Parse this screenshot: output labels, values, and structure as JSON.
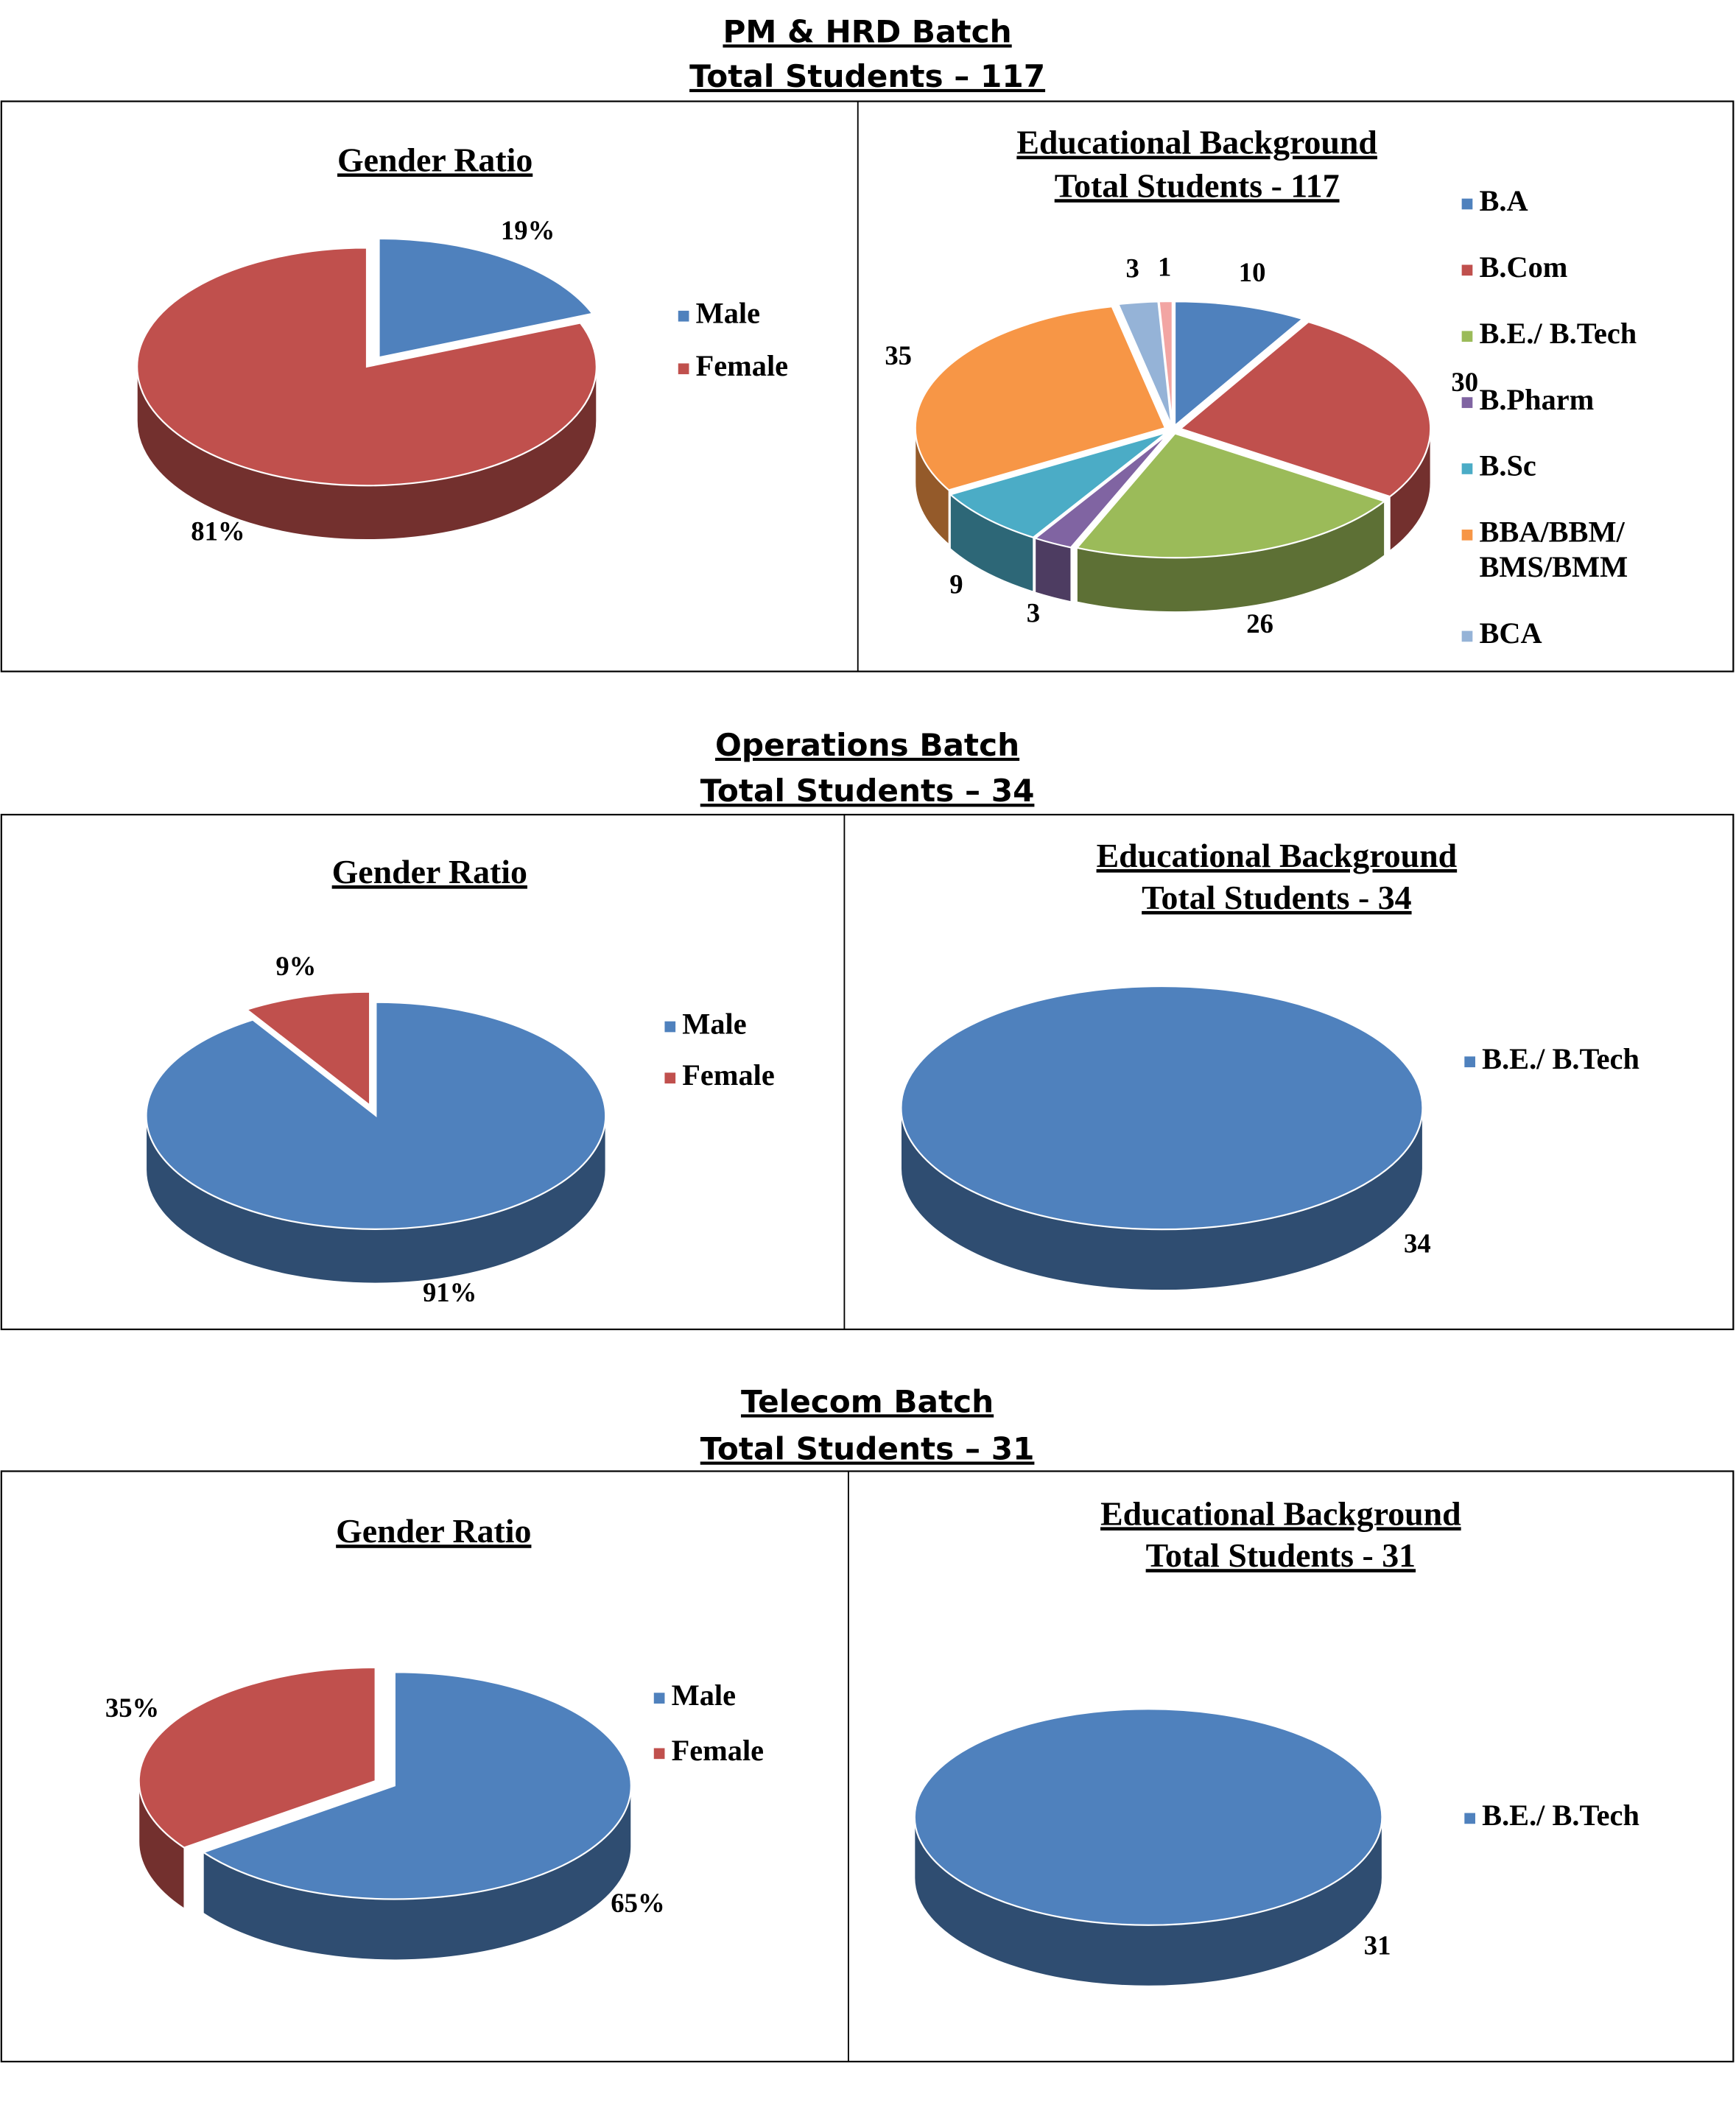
{
  "sections": [
    {
      "title": "PM & HRD Batch",
      "subtitle": "Total Students – 117"
    },
    {
      "title": "Operations Batch",
      "subtitle": "Total Students – 34"
    },
    {
      "title": "Telecom Batch",
      "subtitle": "Total Students – 31"
    }
  ],
  "chart_data": [
    {
      "type": "pie",
      "title": "Gender Ratio",
      "categories": [
        "Male",
        "Female"
      ],
      "values": [
        19,
        81
      ],
      "value_labels": [
        "19%",
        "81%"
      ],
      "colors": [
        "#4f81bd",
        "#c0504d"
      ]
    },
    {
      "type": "pie",
      "title": "Educational Background",
      "subtitle": "Total Students - 117",
      "categories": [
        "B.A",
        "B.Com",
        "B.E./ B.Tech",
        "B.Pharm",
        "B.Sc",
        "BBA/BBM/ BMS/BMM",
        "BCA",
        null
      ],
      "values": [
        10,
        30,
        26,
        3,
        9,
        35,
        3,
        1
      ],
      "colors": [
        "#4f81bd",
        "#c0504d",
        "#9bbb59",
        "#8064a2",
        "#4bacc6",
        "#f79646",
        "#95b3d7",
        "#f2a5a3"
      ]
    },
    {
      "type": "pie",
      "title": "Gender Ratio",
      "categories": [
        "Male",
        "Female"
      ],
      "values": [
        91,
        9
      ],
      "value_labels": [
        "91%",
        "9%"
      ],
      "colors": [
        "#4f81bd",
        "#c0504d"
      ]
    },
    {
      "type": "pie",
      "title": "Educational Background",
      "subtitle": "Total Students - 34",
      "categories": [
        "B.E./ B.Tech"
      ],
      "values": [
        34
      ],
      "colors": [
        "#4f81bd"
      ]
    },
    {
      "type": "pie",
      "title": "Gender Ratio",
      "categories": [
        "Male",
        "Female"
      ],
      "values": [
        65,
        35
      ],
      "value_labels": [
        "65%",
        "35%"
      ],
      "colors": [
        "#4f81bd",
        "#c0504d"
      ]
    },
    {
      "type": "pie",
      "title": "Educational Background",
      "subtitle": "Total Students - 31",
      "categories": [
        "B.E./ B.Tech"
      ],
      "values": [
        31
      ],
      "colors": [
        "#4f81bd"
      ]
    }
  ]
}
